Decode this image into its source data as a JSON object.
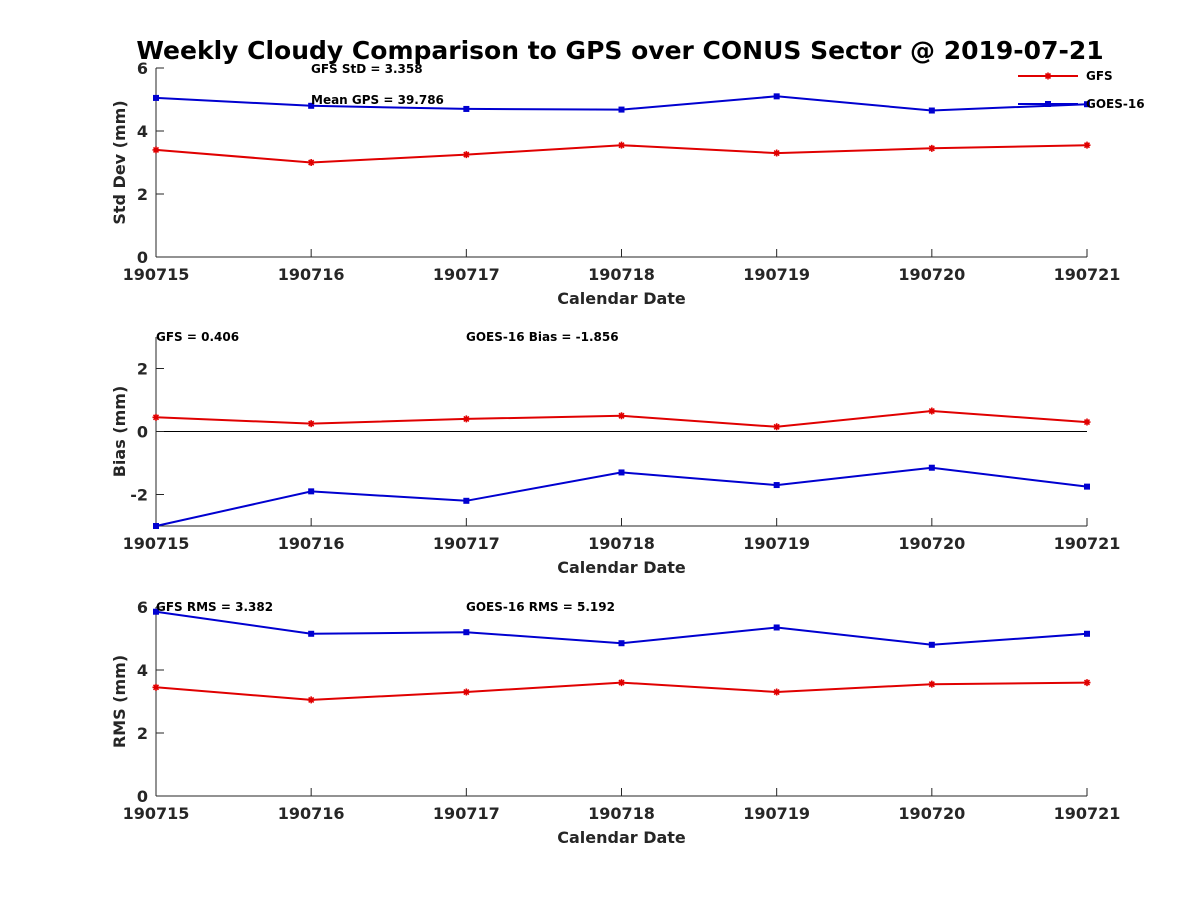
{
  "title": "Weekly Cloudy Comparison to GPS over CONUS Sector @ 2019-07-21",
  "colors": {
    "gfs": "#e00000",
    "goes": "#0000d0",
    "axis": "#262626"
  },
  "legend": {
    "placement": "top-right",
    "items": [
      {
        "label": "GFS",
        "color": "#e00000"
      },
      {
        "label": "GOES-16",
        "color": "#0000d0"
      }
    ]
  },
  "chart_data": [
    {
      "type": "line",
      "title": "",
      "xlabel": "Calendar Date",
      "ylabel": "Std Dev (mm)",
      "categories": [
        "190715",
        "190716",
        "190717",
        "190718",
        "190719",
        "190720",
        "190721"
      ],
      "ylim": [
        0,
        6
      ],
      "yticks": [
        "0",
        "2",
        "4",
        "6"
      ],
      "zero_line": false,
      "series": [
        {
          "name": "GFS",
          "color": "#e00000",
          "values": [
            3.4,
            3.0,
            3.25,
            3.55,
            3.3,
            3.45,
            3.55
          ]
        },
        {
          "name": "GOES-16",
          "color": "#0000d0",
          "values": [
            5.05,
            4.8,
            4.7,
            4.68,
            5.1,
            4.65,
            4.85
          ]
        }
      ],
      "annotations": [
        "GFS StD = 3.358",
        "Mean GPS = 39.786"
      ]
    },
    {
      "type": "line",
      "title": "",
      "xlabel": "Calendar Date",
      "ylabel": "Bias (mm)",
      "categories": [
        "190715",
        "190716",
        "190717",
        "190718",
        "190719",
        "190720",
        "190721"
      ],
      "ylim": [
        -3,
        3
      ],
      "yticks": [
        "-2",
        "0",
        "2"
      ],
      "zero_line": true,
      "series": [
        {
          "name": "GFS",
          "color": "#e00000",
          "values": [
            0.45,
            0.25,
            0.4,
            0.5,
            0.15,
            0.65,
            0.3
          ]
        },
        {
          "name": "GOES-16",
          "color": "#0000d0",
          "values": [
            -3.0,
            -1.9,
            -2.2,
            -1.3,
            -1.7,
            -1.15,
            -1.75
          ]
        }
      ],
      "annotations": [
        "GFS = 0.406",
        "GOES-16 Bias  = -1.856"
      ]
    },
    {
      "type": "line",
      "title": "",
      "xlabel": "Calendar Date",
      "ylabel": "RMS (mm)",
      "categories": [
        "190715",
        "190716",
        "190717",
        "190718",
        "190719",
        "190720",
        "190721"
      ],
      "ylim": [
        0,
        6
      ],
      "yticks": [
        "0",
        "2",
        "4",
        "6"
      ],
      "zero_line": false,
      "series": [
        {
          "name": "GFS",
          "color": "#e00000",
          "values": [
            3.45,
            3.05,
            3.3,
            3.6,
            3.3,
            3.55,
            3.6
          ]
        },
        {
          "name": "GOES-16",
          "color": "#0000d0",
          "values": [
            5.85,
            5.15,
            5.2,
            4.85,
            5.35,
            4.8,
            5.15
          ]
        }
      ],
      "annotations": [
        "GFS RMS = 3.382",
        "GOES-16 RMS = 5.192"
      ]
    }
  ]
}
